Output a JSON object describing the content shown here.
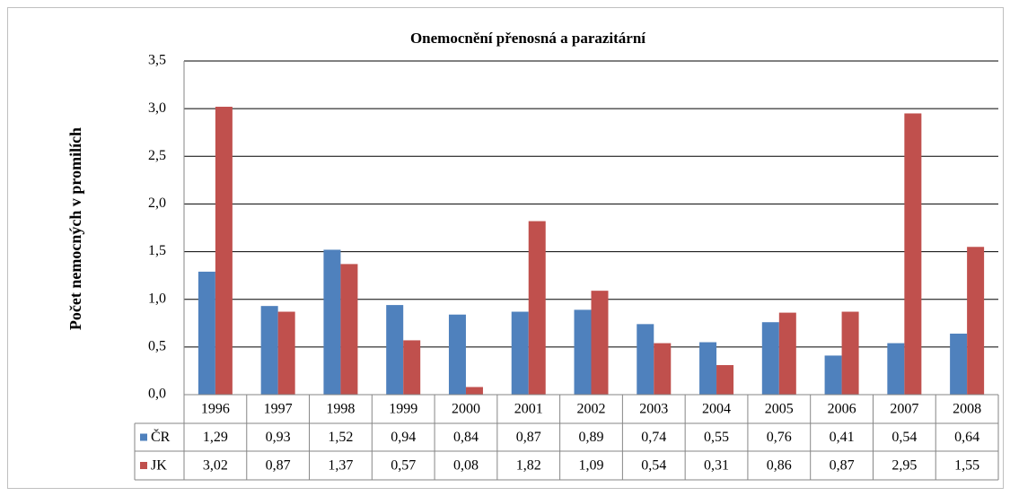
{
  "chart_data": {
    "type": "bar",
    "title": "Onemocnění přenosná a parazitární",
    "y_label": "Počet nemocných v promilích",
    "categories": [
      "1996",
      "1997",
      "1998",
      "1999",
      "2000",
      "2001",
      "2002",
      "2003",
      "2004",
      "2005",
      "2006",
      "2007",
      "2008"
    ],
    "series": [
      {
        "name": "ČR",
        "color": "#4f81bd",
        "values": [
          1.29,
          0.93,
          1.52,
          0.94,
          0.84,
          0.87,
          0.89,
          0.74,
          0.55,
          0.76,
          0.41,
          0.54,
          0.64
        ],
        "value_labels": [
          "1,29",
          "0,93",
          "1,52",
          "0,94",
          "0,84",
          "0,87",
          "0,89",
          "0,74",
          "0,55",
          "0,76",
          "0,41",
          "0,54",
          "0,64"
        ]
      },
      {
        "name": "JK",
        "color": "#c0504d",
        "values": [
          3.02,
          0.87,
          1.37,
          0.57,
          0.08,
          1.82,
          1.09,
          0.54,
          0.31,
          0.86,
          0.87,
          2.95,
          1.55
        ],
        "value_labels": [
          "3,02",
          "0,87",
          "1,37",
          "0,57",
          "0,08",
          "1,82",
          "1,09",
          "0,54",
          "0,31",
          "0,86",
          "0,87",
          "2,95",
          "1,55"
        ]
      }
    ],
    "ylim": [
      0,
      3.5
    ],
    "yticks": [
      {
        "value": 0,
        "label": "0,0"
      },
      {
        "value": 0.5,
        "label": "0,5"
      },
      {
        "value": 1,
        "label": "1,0"
      },
      {
        "value": 1.5,
        "label": "1,5"
      },
      {
        "value": 2,
        "label": "2,0"
      },
      {
        "value": 2.5,
        "label": "2,5"
      },
      {
        "value": 3,
        "label": "3,0"
      },
      {
        "value": 3.5,
        "label": "3,5"
      }
    ],
    "grid": true
  }
}
